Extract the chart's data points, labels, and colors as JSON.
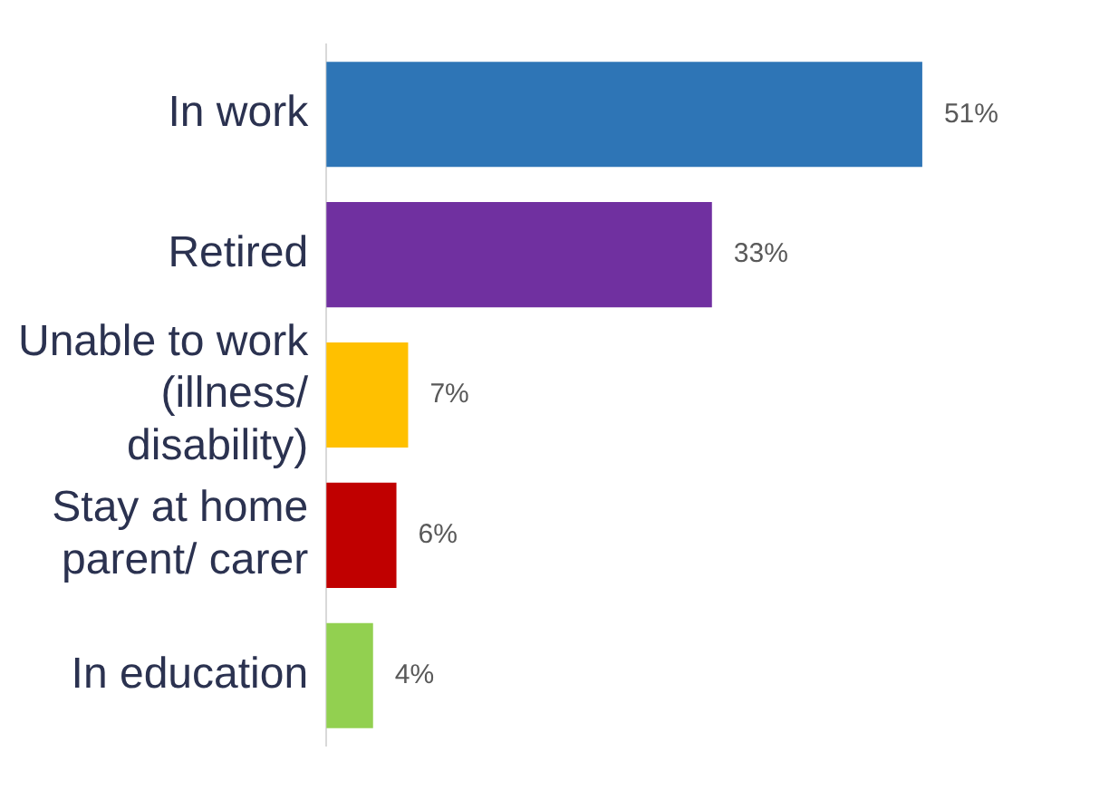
{
  "chart_data": {
    "type": "bar",
    "orientation": "horizontal",
    "categories": [
      "In work",
      "Retired",
      "Unable to work (illness/ disability)",
      "Stay at home parent/ carer",
      "In education"
    ],
    "values": [
      51,
      33,
      7,
      6,
      4
    ],
    "colors": [
      "#2e75b6",
      "#7030a0",
      "#ffc000",
      "#c00000",
      "#92d050"
    ],
    "value_labels": [
      "51%",
      "33%",
      "7%",
      "6%",
      "4%"
    ],
    "grid": false,
    "legend": false
  }
}
